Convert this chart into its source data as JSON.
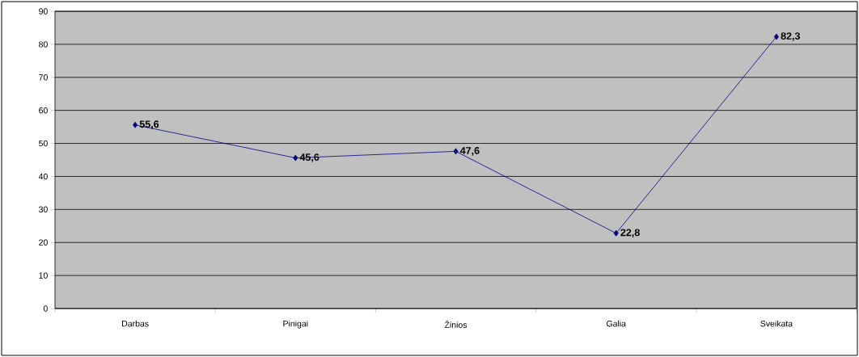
{
  "chart_data": {
    "type": "line",
    "categories": [
      "Darbas",
      "Pinigai",
      "Žinios",
      "Galia",
      "Sveikata"
    ],
    "values": [
      55.6,
      45.6,
      47.6,
      22.8,
      82.3
    ],
    "value_labels": [
      "55,6",
      "45,6",
      "47,6",
      "22,8",
      "82,3"
    ],
    "color": "#000080",
    "marker": "diamond",
    "line_style": "solid",
    "grid": "y",
    "ylim": [
      0,
      90
    ],
    "yticks": [
      0,
      10,
      20,
      30,
      40,
      50,
      60,
      70,
      80,
      90
    ]
  }
}
